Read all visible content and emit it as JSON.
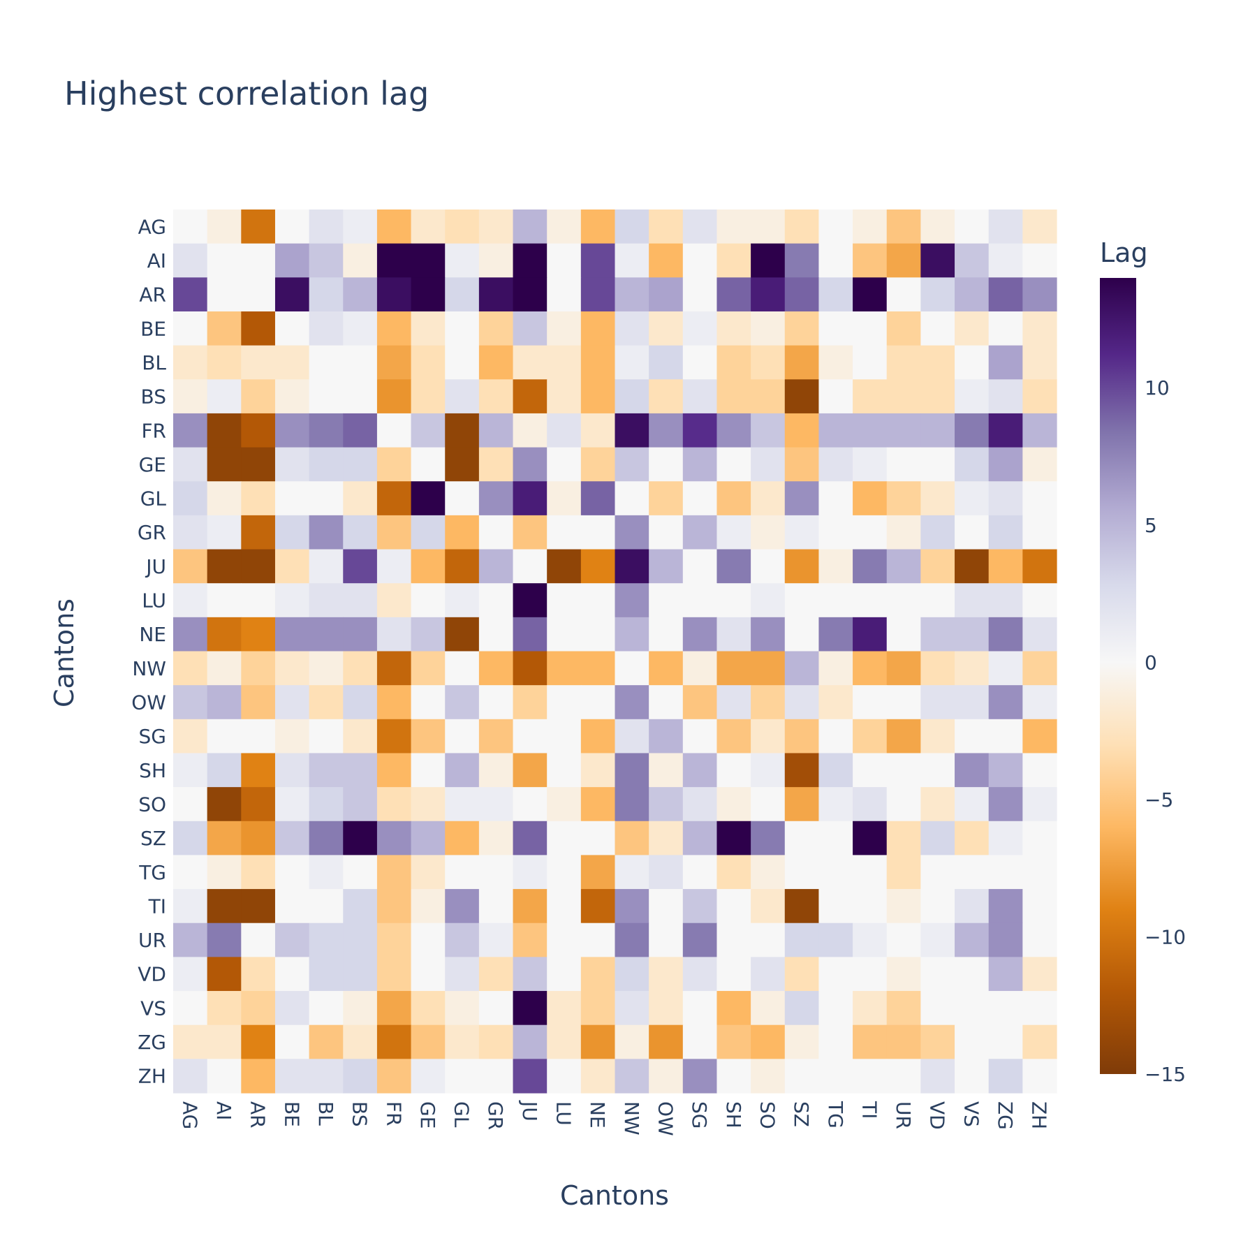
{
  "chart_data": {
    "type": "heatmap",
    "title": "Highest correlation lag",
    "xlabel": "Cantons",
    "ylabel": "Cantons",
    "colorbar": {
      "title": "Lag",
      "range": [
        -15,
        14
      ],
      "ticks": [
        -15,
        -10,
        -5,
        0,
        5,
        10
      ],
      "tick_labels": [
        "−15",
        "−10",
        "−5",
        "0",
        "5",
        "10"
      ],
      "colorscale": [
        "#7f3b08",
        "#b35806",
        "#e08214",
        "#fdb863",
        "#fee0b6",
        "#f7f7f7",
        "#d8daeb",
        "#b2abd2",
        "#8073ac",
        "#542788",
        "#2d004b"
      ]
    },
    "categories": [
      "AG",
      "AI",
      "AR",
      "BE",
      "BL",
      "BS",
      "FR",
      "GE",
      "GL",
      "GR",
      "JU",
      "LU",
      "NE",
      "NW",
      "OW",
      "SG",
      "SH",
      "SO",
      "SZ",
      "TG",
      "TI",
      "UR",
      "VD",
      "VS",
      "ZG",
      "ZH"
    ],
    "z": [
      [
        0,
        -1,
        -10,
        0,
        2,
        1,
        -6,
        -2,
        -3,
        -2,
        5,
        -1,
        -6,
        3,
        -3,
        2,
        -1,
        -1,
        -3,
        0,
        -1,
        -5,
        -1,
        0,
        2,
        -2
      ],
      [
        2,
        0,
        0,
        6,
        4,
        -1,
        14,
        14,
        1,
        -1,
        14,
        0,
        10,
        1,
        -6,
        0,
        -3,
        14,
        8,
        0,
        -5,
        -7,
        13,
        4,
        1,
        0
      ],
      [
        10,
        0,
        0,
        13,
        3,
        5,
        13,
        14,
        3,
        13,
        14,
        0,
        10,
        5,
        6,
        0,
        9,
        12,
        9,
        3,
        14,
        0,
        3,
        5,
        9,
        7
      ],
      [
        0,
        -5,
        -12,
        0,
        2,
        1,
        -6,
        -2,
        0,
        -4,
        4,
        -1,
        -6,
        2,
        -2,
        1,
        -2,
        -1,
        -4,
        0,
        0,
        -4,
        0,
        -2,
        0,
        -2
      ],
      [
        -2,
        -3,
        -2,
        -2,
        0,
        0,
        -7,
        -3,
        0,
        -6,
        -2,
        -2,
        -6,
        1,
        3,
        0,
        -4,
        -3,
        -7,
        -1,
        0,
        -3,
        -3,
        0,
        6,
        -2
      ],
      [
        -1,
        1,
        -4,
        -1,
        0,
        0,
        -8,
        -3,
        2,
        -3,
        -11,
        -2,
        -6,
        3,
        -3,
        2,
        -4,
        -4,
        -14,
        0,
        -3,
        -3,
        -3,
        1,
        2,
        -3
      ],
      [
        7,
        -14,
        -12,
        7,
        8,
        9,
        0,
        4,
        -14,
        5,
        -1,
        2,
        -2,
        13,
        7,
        11,
        7,
        4,
        -6,
        5,
        5,
        5,
        5,
        8,
        12,
        5
      ],
      [
        2,
        -14,
        -14,
        2,
        3,
        3,
        -4,
        0,
        -14,
        -3,
        7,
        0,
        -4,
        4,
        0,
        5,
        0,
        2,
        -5,
        2,
        1,
        0,
        0,
        3,
        6,
        -1
      ],
      [
        3,
        -1,
        -3,
        0,
        0,
        -2,
        -11,
        14,
        0,
        7,
        12,
        -1,
        9,
        0,
        -4,
        0,
        -5,
        -2,
        7,
        0,
        -6,
        -4,
        -2,
        1,
        2,
        0
      ],
      [
        2,
        1,
        -11,
        3,
        7,
        3,
        -5,
        3,
        -6,
        0,
        -5,
        0,
        0,
        7,
        0,
        5,
        1,
        -1,
        1,
        0,
        0,
        -1,
        3,
        0,
        3,
        0
      ],
      [
        -5,
        -14,
        -14,
        -3,
        1,
        10,
        1,
        -6,
        -11,
        5,
        0,
        -14,
        -9,
        13,
        5,
        0,
        8,
        0,
        -8,
        -1,
        8,
        5,
        -4,
        -14,
        -6,
        -10
      ],
      [
        1,
        0,
        0,
        1,
        2,
        2,
        -2,
        0,
        1,
        0,
        14,
        0,
        0,
        7,
        0,
        0,
        0,
        1,
        0,
        0,
        0,
        0,
        0,
        2,
        2,
        0
      ],
      [
        7,
        -10,
        -9,
        7,
        7,
        7,
        2,
        4,
        -14,
        0,
        9,
        0,
        0,
        5,
        0,
        7,
        2,
        7,
        0,
        8,
        12,
        0,
        4,
        4,
        8,
        2
      ],
      [
        -3,
        -1,
        -4,
        -2,
        -1,
        -3,
        -11,
        -4,
        0,
        -6,
        -12,
        -6,
        -6,
        0,
        -6,
        -1,
        -7,
        -7,
        5,
        -1,
        -6,
        -7,
        -3,
        -2,
        1,
        -4
      ],
      [
        4,
        5,
        -5,
        2,
        -3,
        3,
        -6,
        0,
        4,
        0,
        -4,
        0,
        0,
        7,
        0,
        -5,
        2,
        -4,
        2,
        -2,
        0,
        0,
        2,
        2,
        7,
        1
      ],
      [
        -2,
        0,
        0,
        -1,
        0,
        -2,
        -10,
        -5,
        0,
        -5,
        0,
        0,
        -6,
        2,
        5,
        0,
        -5,
        -2,
        -5,
        0,
        -4,
        -7,
        -2,
        0,
        0,
        -6
      ],
      [
        1,
        3,
        -9,
        2,
        4,
        4,
        -6,
        0,
        5,
        -1,
        -7,
        0,
        -2,
        8,
        -1,
        5,
        0,
        1,
        -13,
        3,
        0,
        0,
        0,
        7,
        5,
        0
      ],
      [
        0,
        -14,
        -11,
        1,
        3,
        4,
        -3,
        -2,
        1,
        1,
        0,
        -1,
        -6,
        8,
        4,
        2,
        -1,
        0,
        -7,
        1,
        2,
        0,
        -2,
        1,
        7,
        1
      ],
      [
        3,
        -7,
        -8,
        4,
        8,
        14,
        7,
        5,
        -6,
        -1,
        9,
        0,
        0,
        -5,
        -2,
        5,
        14,
        8,
        0,
        0,
        14,
        -3,
        3,
        -3,
        1,
        0
      ],
      [
        0,
        -1,
        -3,
        0,
        1,
        0,
        -5,
        -2,
        0,
        0,
        1,
        0,
        -7,
        1,
        2,
        0,
        -3,
        -1,
        0,
        0,
        0,
        -3,
        0,
        0,
        0,
        0
      ],
      [
        1,
        -14,
        -14,
        0,
        0,
        3,
        -5,
        -1,
        7,
        0,
        -7,
        0,
        -11,
        7,
        0,
        4,
        0,
        -2,
        -14,
        0,
        0,
        -1,
        0,
        2,
        7,
        0
      ],
      [
        5,
        8,
        0,
        4,
        3,
        3,
        -4,
        0,
        4,
        1,
        -5,
        0,
        0,
        8,
        0,
        8,
        0,
        0,
        3,
        3,
        1,
        0,
        1,
        5,
        7,
        0
      ],
      [
        1,
        -12,
        -3,
        0,
        3,
        3,
        -4,
        0,
        2,
        -3,
        4,
        0,
        -4,
        3,
        -2,
        2,
        0,
        2,
        -3,
        0,
        0,
        -1,
        0,
        0,
        5,
        -2
      ],
      [
        0,
        -3,
        -4,
        2,
        0,
        -1,
        -7,
        -3,
        -1,
        0,
        14,
        -2,
        -4,
        2,
        -2,
        0,
        -6,
        -1,
        3,
        0,
        -2,
        -4,
        0,
        0,
        0,
        0
      ],
      [
        -2,
        -2,
        -9,
        0,
        -5,
        -2,
        -10,
        -5,
        -2,
        -3,
        5,
        -2,
        -8,
        -1,
        -8,
        0,
        -5,
        -6,
        -1,
        0,
        -5,
        -5,
        -4,
        0,
        0,
        -3
      ],
      [
        2,
        0,
        -6,
        2,
        2,
        3,
        -5,
        1,
        0,
        0,
        10,
        0,
        -2,
        4,
        -1,
        7,
        0,
        -1,
        0,
        0,
        0,
        0,
        2,
        0,
        3,
        0
      ]
    ]
  }
}
